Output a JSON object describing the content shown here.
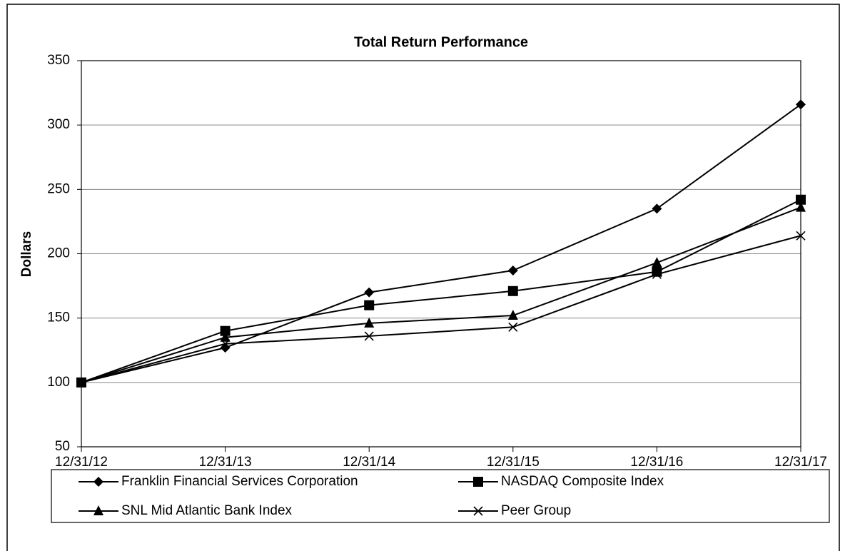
{
  "chart_data": {
    "type": "line",
    "title": "Total Return Performance",
    "y_label": "Dollars",
    "categories": [
      "12/31/12",
      "12/31/13",
      "12/31/14",
      "12/31/15",
      "12/31/16",
      "12/31/17"
    ],
    "series": [
      {
        "name": "Franklin Financial Services Corporation",
        "color": "#000000",
        "marker": "diamond",
        "values": [
          100,
          127,
          170,
          187,
          235,
          316
        ]
      },
      {
        "name": "NASDAQ Composite Index",
        "color": "#000000",
        "marker": "square",
        "values": [
          100,
          140,
          160,
          171,
          186,
          242
        ]
      },
      {
        "name": "SNL Mid Atlantic Bank Index",
        "color": "#000000",
        "marker": "triangle",
        "values": [
          100,
          135,
          146,
          152,
          193,
          236
        ]
      },
      {
        "name": "Peer Group",
        "color": "#000000",
        "marker": "x",
        "values": [
          100,
          130,
          136,
          143,
          184,
          214
        ]
      }
    ],
    "ylim": [
      50,
      350
    ],
    "yticks": [
      50,
      100,
      150,
      200,
      250,
      300,
      350
    ],
    "grid": true
  }
}
